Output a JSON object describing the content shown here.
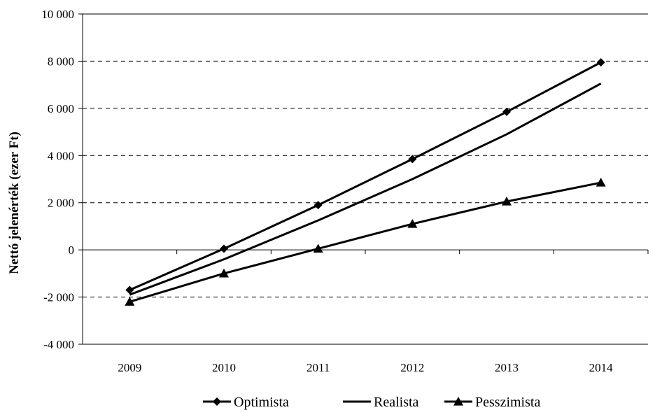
{
  "chart_data": {
    "type": "line",
    "title": "",
    "xlabel": "",
    "ylabel": "Nettó jelenérték (ezer Ft)",
    "categories": [
      "2009",
      "2010",
      "2011",
      "2012",
      "2013",
      "2014"
    ],
    "ylim": [
      -4000,
      10000
    ],
    "y_ticks": [
      -4000,
      -2000,
      0,
      2000,
      4000,
      6000,
      8000,
      10000
    ],
    "y_tick_labels": [
      "-4 000",
      "-2 000",
      "0",
      "2 000",
      "4 000",
      "6 000",
      "8 000",
      "10 000"
    ],
    "grid": "horizontal dashed",
    "legend_position": "bottom",
    "series": [
      {
        "name": "Optimista",
        "marker": "diamond",
        "values": [
          -1700,
          50,
          1900,
          3850,
          5850,
          7950
        ]
      },
      {
        "name": "Realista",
        "marker": "none",
        "values": [
          -1900,
          -400,
          1250,
          3000,
          4900,
          7050
        ]
      },
      {
        "name": "Pesszimista",
        "marker": "triangle",
        "values": [
          -2200,
          -1000,
          50,
          1100,
          2050,
          2850
        ]
      }
    ],
    "colors": {
      "line": "#000000",
      "grid": "#000000"
    }
  }
}
